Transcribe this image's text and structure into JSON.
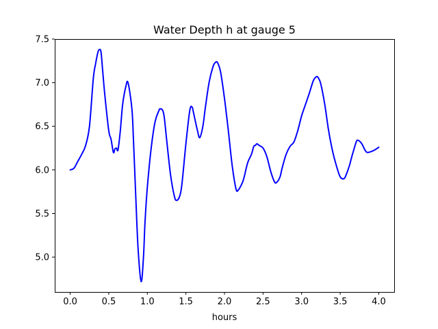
{
  "chart_data": {
    "type": "line",
    "title": "Water Depth h at gauge 5",
    "xlabel": "hours",
    "ylabel": "",
    "xlim": [
      -0.2,
      4.2
    ],
    "ylim": [
      4.6,
      7.5
    ],
    "xticks": [
      0.0,
      0.5,
      1.0,
      1.5,
      2.0,
      2.5,
      3.0,
      3.5,
      4.0
    ],
    "xtick_labels": [
      "0.0",
      "0.5",
      "1.0",
      "1.5",
      "2.0",
      "2.5",
      "3.0",
      "3.5",
      "4.0"
    ],
    "yticks": [
      5.0,
      5.5,
      6.0,
      6.5,
      7.0,
      7.5
    ],
    "ytick_labels": [
      "5.0",
      "5.5",
      "6.0",
      "6.5",
      "7.0",
      "7.5"
    ],
    "grid": false,
    "legend": "none",
    "series": [
      {
        "color": "#0000ff",
        "x": [
          0.0,
          0.05,
          0.1,
          0.15,
          0.2,
          0.25,
          0.3,
          0.33,
          0.36,
          0.38,
          0.4,
          0.42,
          0.45,
          0.5,
          0.53,
          0.56,
          0.58,
          0.6,
          0.62,
          0.65,
          0.68,
          0.72,
          0.75,
          0.8,
          0.82,
          0.85,
          0.88,
          0.92,
          0.95,
          0.97,
          1.0,
          1.05,
          1.1,
          1.15,
          1.17,
          1.2,
          1.22,
          1.25,
          1.3,
          1.35,
          1.38,
          1.42,
          1.45,
          1.5,
          1.55,
          1.58,
          1.6,
          1.65,
          1.68,
          1.72,
          1.75,
          1.8,
          1.85,
          1.88,
          1.91,
          1.95,
          2.0,
          2.05,
          2.1,
          2.15,
          2.18,
          2.22,
          2.25,
          2.3,
          2.35,
          2.38,
          2.4,
          2.42,
          2.45,
          2.5,
          2.55,
          2.6,
          2.65,
          2.68,
          2.72,
          2.75,
          2.8,
          2.85,
          2.9,
          2.95,
          3.0,
          3.05,
          3.1,
          3.15,
          3.18,
          3.2,
          3.22,
          3.25,
          3.3,
          3.35,
          3.4,
          3.45,
          3.5,
          3.55,
          3.58,
          3.62,
          3.65,
          3.7,
          3.72,
          3.75,
          3.78,
          3.82,
          3.85,
          3.9,
          3.95,
          4.0
        ],
        "values": [
          6.0,
          6.02,
          6.1,
          6.18,
          6.28,
          6.5,
          7.05,
          7.22,
          7.35,
          7.38,
          7.35,
          7.15,
          6.85,
          6.45,
          6.35,
          6.2,
          6.24,
          6.25,
          6.23,
          6.45,
          6.75,
          6.95,
          7.0,
          6.7,
          6.35,
          5.7,
          5.1,
          4.72,
          5.0,
          5.4,
          5.8,
          6.25,
          6.55,
          6.68,
          6.7,
          6.68,
          6.6,
          6.35,
          5.95,
          5.7,
          5.65,
          5.7,
          5.85,
          6.3,
          6.68,
          6.72,
          6.65,
          6.45,
          6.37,
          6.5,
          6.7,
          7.0,
          7.18,
          7.23,
          7.23,
          7.12,
          6.82,
          6.45,
          6.05,
          5.78,
          5.77,
          5.83,
          5.9,
          6.08,
          6.18,
          6.27,
          6.28,
          6.3,
          6.28,
          6.25,
          6.15,
          5.98,
          5.86,
          5.86,
          5.92,
          6.03,
          6.18,
          6.27,
          6.32,
          6.45,
          6.62,
          6.75,
          6.88,
          7.02,
          7.06,
          7.07,
          7.05,
          6.98,
          6.75,
          6.45,
          6.22,
          6.05,
          5.92,
          5.9,
          5.95,
          6.05,
          6.15,
          6.3,
          6.34,
          6.33,
          6.3,
          6.23,
          6.2,
          6.21,
          6.23,
          6.26
        ]
      }
    ]
  }
}
